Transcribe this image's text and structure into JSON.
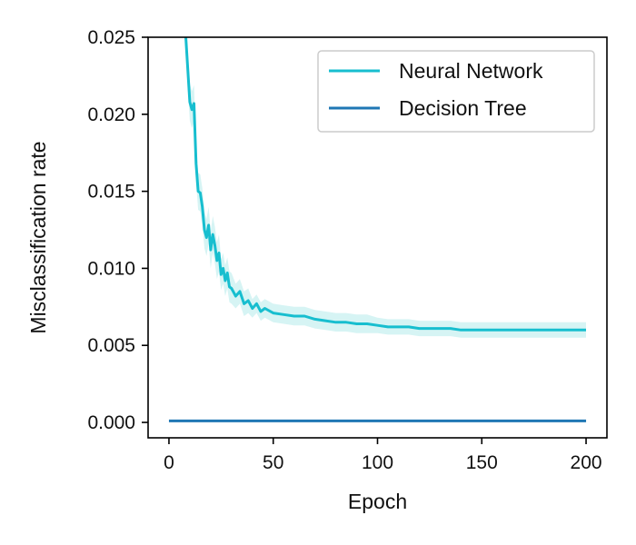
{
  "chart_data": {
    "type": "line",
    "title": "",
    "xlabel": "Epoch",
    "ylabel": "Misclassification rate",
    "xlim": [
      -10,
      210
    ],
    "ylim": [
      -0.001,
      0.025
    ],
    "xticks": [
      0,
      50,
      100,
      150,
      200
    ],
    "xtick_labels": [
      "0",
      "50",
      "100",
      "150",
      "200"
    ],
    "yticks": [
      0.0,
      0.005,
      0.01,
      0.015,
      0.02,
      0.025
    ],
    "ytick_labels": [
      "0.000",
      "0.005",
      "0.010",
      "0.015",
      "0.020",
      "0.025"
    ],
    "grid": false,
    "legend_position": "top-right",
    "series": [
      {
        "name": "Neural Network",
        "color": "#17becf",
        "band_color": "#c5f0ef",
        "x": [
          8,
          10,
          11,
          12,
          13,
          14,
          15,
          16,
          17,
          18,
          19,
          20,
          21,
          22,
          23,
          24,
          25,
          26,
          27,
          28,
          29,
          30,
          32,
          34,
          36,
          38,
          40,
          42,
          44,
          46,
          50,
          55,
          60,
          65,
          70,
          75,
          80,
          85,
          90,
          95,
          100,
          105,
          110,
          115,
          120,
          125,
          130,
          135,
          140,
          145,
          150,
          155,
          160,
          165,
          170,
          175,
          180,
          185,
          190,
          195,
          200
        ],
        "values": [
          0.0252,
          0.0208,
          0.0203,
          0.0207,
          0.0168,
          0.015,
          0.0149,
          0.014,
          0.0125,
          0.012,
          0.0128,
          0.0112,
          0.0122,
          0.0115,
          0.0105,
          0.011,
          0.0096,
          0.01,
          0.0092,
          0.0097,
          0.0088,
          0.0087,
          0.0082,
          0.0085,
          0.0077,
          0.0079,
          0.0074,
          0.0077,
          0.0072,
          0.0074,
          0.0071,
          0.007,
          0.0069,
          0.0069,
          0.0067,
          0.0066,
          0.0065,
          0.0065,
          0.0064,
          0.0064,
          0.0063,
          0.0062,
          0.0062,
          0.0062,
          0.0061,
          0.0061,
          0.0061,
          0.0061,
          0.006,
          0.006,
          0.006,
          0.006,
          0.006,
          0.006,
          0.006,
          0.006,
          0.006,
          0.006,
          0.006,
          0.006,
          0.006
        ],
        "band_halfwidth": [
          0.0012,
          0.0012,
          0.0012,
          0.0012,
          0.0012,
          0.0012,
          0.0012,
          0.0012,
          0.0012,
          0.0012,
          0.0012,
          0.0012,
          0.0012,
          0.0012,
          0.0012,
          0.0012,
          0.001,
          0.001,
          0.001,
          0.001,
          0.001,
          0.001,
          0.0008,
          0.0008,
          0.0008,
          0.0008,
          0.0006,
          0.0006,
          0.0006,
          0.0006,
          0.0006,
          0.0006,
          0.0006,
          0.0006,
          0.0006,
          0.0006,
          0.0006,
          0.0006,
          0.0006,
          0.0006,
          0.0005,
          0.0005,
          0.0005,
          0.0005,
          0.0005,
          0.0005,
          0.0005,
          0.0005,
          0.0005,
          0.0005,
          0.0005,
          0.0005,
          0.0005,
          0.0005,
          0.0005,
          0.0005,
          0.0005,
          0.0005,
          0.0005,
          0.0005,
          0.0005
        ]
      },
      {
        "name": "Decision Tree",
        "color": "#1f77b4",
        "x": [
          0,
          200
        ],
        "values": [
          0.0001,
          0.0001
        ]
      }
    ]
  }
}
